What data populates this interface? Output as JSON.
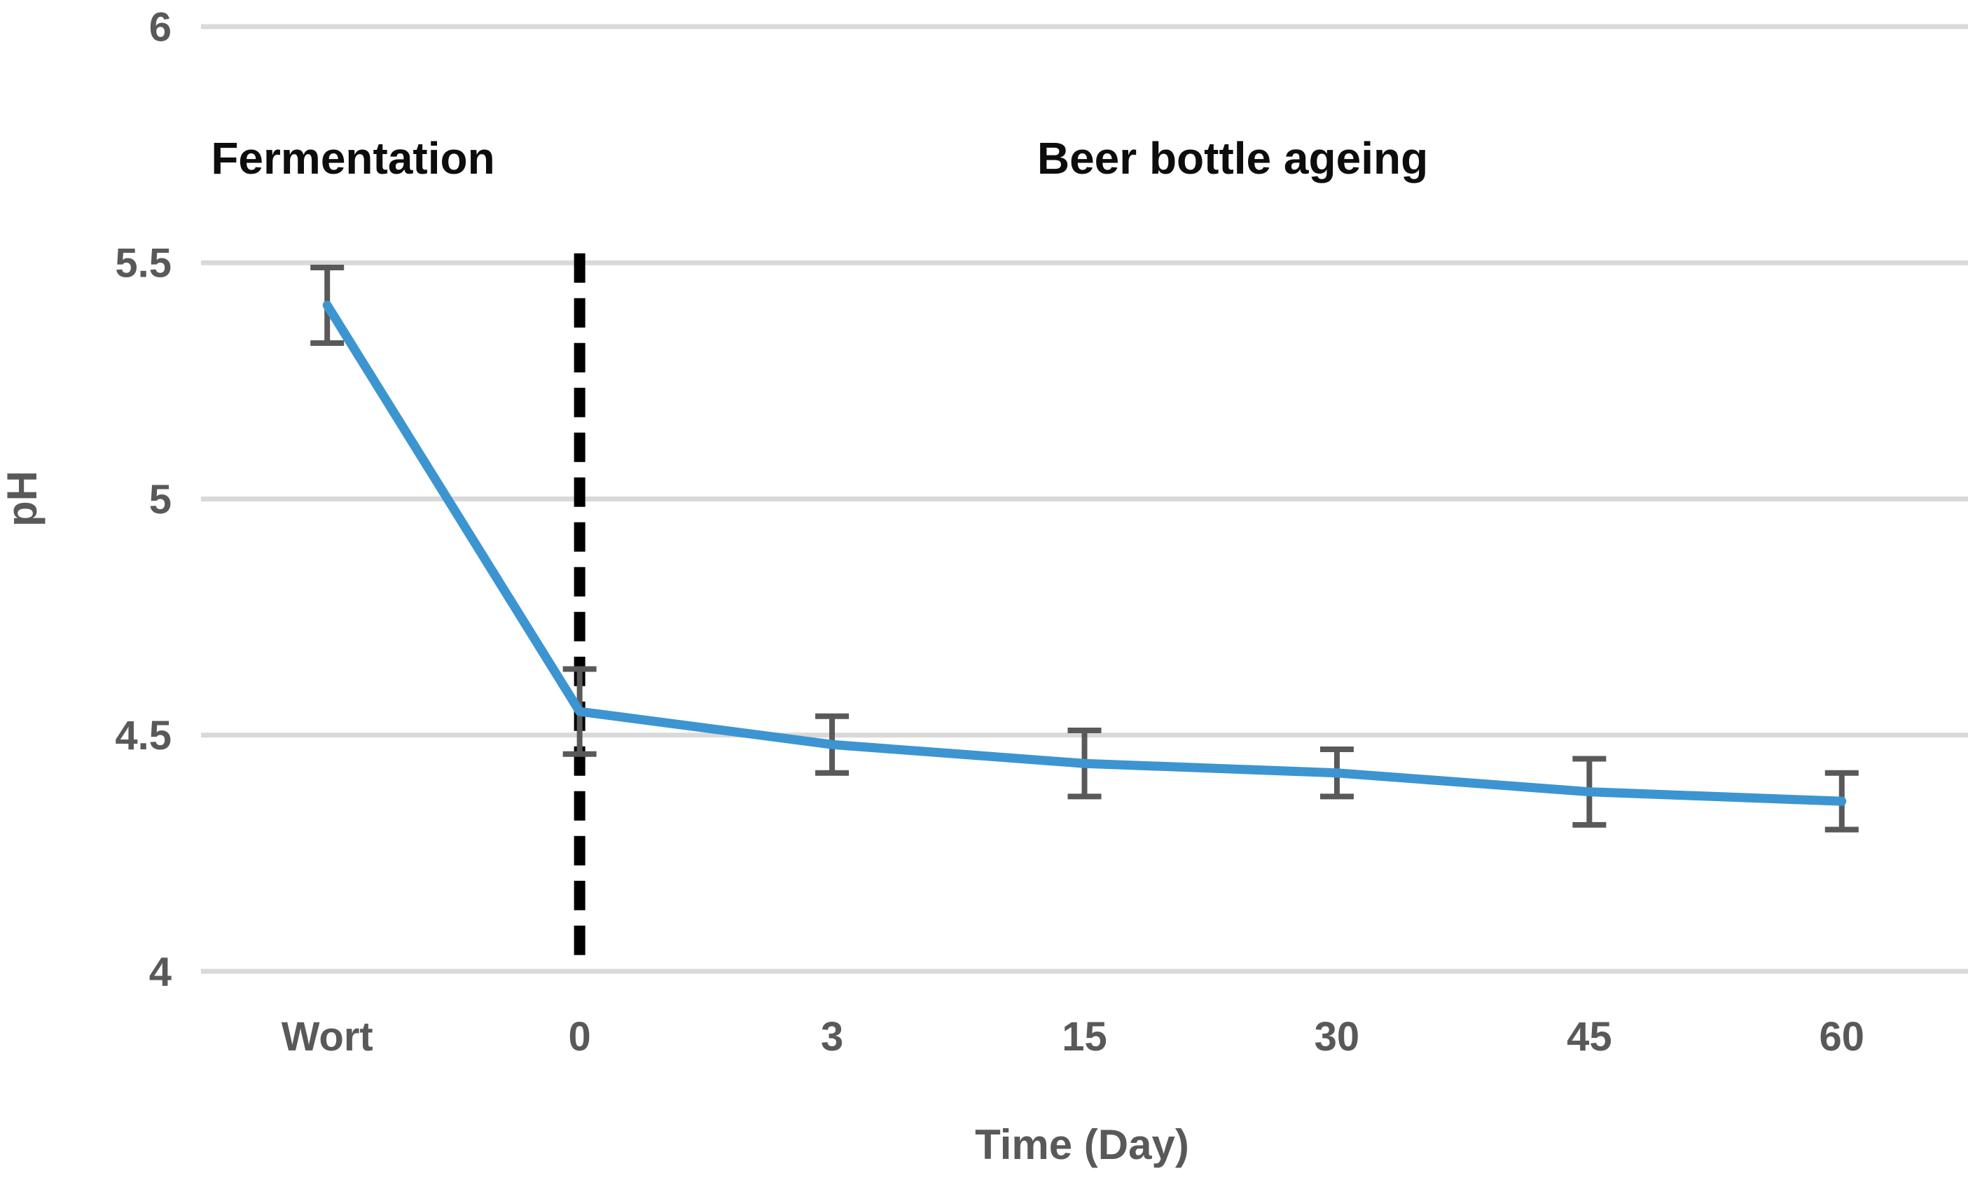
{
  "chart_data": {
    "type": "line",
    "title": "",
    "xlabel": "Time (Day)",
    "ylabel": "pH",
    "categories": [
      "Wort",
      "0",
      "3",
      "15",
      "30",
      "45",
      "60"
    ],
    "series": [
      {
        "name": "pH",
        "values": [
          5.41,
          4.55,
          4.48,
          4.44,
          4.42,
          4.38,
          4.36
        ],
        "errors": [
          0.08,
          0.09,
          0.06,
          0.07,
          0.05,
          0.07,
          0.06
        ]
      }
    ],
    "ylim": [
      4,
      6
    ],
    "yticks": [
      4,
      4.5,
      5,
      5.5,
      6
    ],
    "ytick_labels": [
      "4",
      "4.5",
      "5",
      "5.5",
      "6"
    ],
    "grid": "horizontal-only",
    "legend": "none",
    "annotations": [
      {
        "text": "Fermentation",
        "region": "fermentation-phase"
      },
      {
        "text": "Beer bottle ageing",
        "region": "ageing-phase"
      }
    ],
    "divider": {
      "style": "dashed",
      "at_category": "0",
      "from_ph": 5.52,
      "to_ph": 4.0
    },
    "colors": {
      "line": "#3C95D1",
      "grid": "#D9D9D9",
      "tick_text": "#595959",
      "axis_title_text": "#595959",
      "annotation_text": "#0D0D0D",
      "error_bar": "#595959",
      "divider": "#000000",
      "background": "#FFFFFF"
    }
  }
}
